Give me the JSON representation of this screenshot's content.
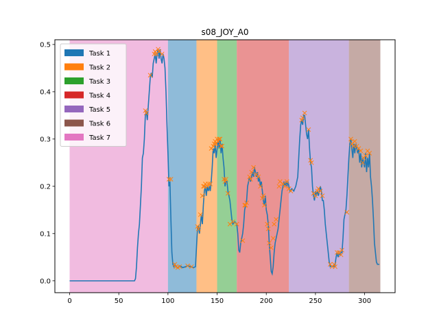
{
  "chart_data": {
    "type": "line",
    "title": "s08_JOY_A0",
    "xlabel": "",
    "ylabel": "",
    "xlim": [
      -15,
      331
    ],
    "ylim": [
      -0.025,
      0.51
    ],
    "xticks": [
      0,
      50,
      100,
      150,
      200,
      250,
      300
    ],
    "yticks": [
      0.0,
      0.1,
      0.2,
      0.3,
      0.4,
      0.5
    ],
    "xtick_labels": [
      "0",
      "50",
      "100",
      "150",
      "200",
      "250",
      "300"
    ],
    "ytick_labels": [
      "0.0",
      "0.1",
      "0.2",
      "0.3",
      "0.4",
      "0.5"
    ],
    "grid": false,
    "legend_position": "upper-left",
    "legend": [
      {
        "label": "Task 1",
        "color": "#1f77b4"
      },
      {
        "label": "Task 2",
        "color": "#ff7f0e"
      },
      {
        "label": "Task 3",
        "color": "#2ca02c"
      },
      {
        "label": "Task 4",
        "color": "#d62728"
      },
      {
        "label": "Task 5",
        "color": "#9467bd"
      },
      {
        "label": "Task 6",
        "color": "#8c564b"
      },
      {
        "label": "Task 7",
        "color": "#e377c2"
      }
    ],
    "spans": [
      {
        "task": "Task 7",
        "x0": 0,
        "x1": 100,
        "color": "#e377c2"
      },
      {
        "task": "Task 1",
        "x0": 100,
        "x1": 129,
        "color": "#1f77b4"
      },
      {
        "task": "Task 2",
        "x0": 129,
        "x1": 150,
        "color": "#ff7f0e"
      },
      {
        "task": "Task 3",
        "x0": 150,
        "x1": 170,
        "color": "#2ca02c"
      },
      {
        "task": "Task 4",
        "x0": 170,
        "x1": 223,
        "color": "#d62728"
      },
      {
        "task": "Task 5",
        "x0": 223,
        "x1": 284,
        "color": "#9467bd"
      },
      {
        "task": "Task 6",
        "x0": 284,
        "x1": 316,
        "color": "#8c564b"
      }
    ],
    "line_color": "#1f77b4",
    "marker_color": "#ff7f0e",
    "series_points": [
      [
        0,
        0
      ],
      [
        66,
        0
      ],
      [
        67,
        0.005
      ],
      [
        68,
        0.03
      ],
      [
        69,
        0.07
      ],
      [
        70,
        0.1
      ],
      [
        71,
        0.12
      ],
      [
        72,
        0.16
      ],
      [
        73,
        0.2
      ],
      [
        74,
        0.26
      ],
      [
        75,
        0.27
      ],
      [
        76,
        0.3
      ],
      [
        77,
        0.35
      ],
      [
        78,
        0.36
      ],
      [
        79,
        0.34
      ],
      [
        80,
        0.37
      ],
      [
        81,
        0.4
      ],
      [
        82,
        0.43
      ],
      [
        83,
        0.44
      ],
      [
        84,
        0.43
      ],
      [
        85,
        0.46
      ],
      [
        86,
        0.47
      ],
      [
        87,
        0.48
      ],
      [
        88,
        0.46
      ],
      [
        89,
        0.48
      ],
      [
        90,
        0.49
      ],
      [
        91,
        0.47
      ],
      [
        92,
        0.49
      ],
      [
        93,
        0.47
      ],
      [
        94,
        0.46
      ],
      [
        95,
        0.48
      ],
      [
        96,
        0.47
      ],
      [
        97,
        0.45
      ],
      [
        98,
        0.4
      ],
      [
        99,
        0.33
      ],
      [
        100,
        0.27
      ],
      [
        101,
        0.2
      ],
      [
        102,
        0.21
      ],
      [
        103,
        0.13
      ],
      [
        104,
        0.06
      ],
      [
        105,
        0.035
      ],
      [
        106,
        0.03
      ],
      [
        107,
        0.035
      ],
      [
        108,
        0.03
      ],
      [
        110,
        0.028
      ],
      [
        112,
        0.032
      ],
      [
        115,
        0.028
      ],
      [
        118,
        0.03
      ],
      [
        120,
        0.032
      ],
      [
        123,
        0.03
      ],
      [
        126,
        0.028
      ],
      [
        128,
        0.03
      ],
      [
        129,
        0.07
      ],
      [
        130,
        0.11
      ],
      [
        131,
        0.115
      ],
      [
        132,
        0.1
      ],
      [
        133,
        0.12
      ],
      [
        134,
        0.14
      ],
      [
        135,
        0.12
      ],
      [
        136,
        0.16
      ],
      [
        137,
        0.19
      ],
      [
        138,
        0.2
      ],
      [
        139,
        0.18
      ],
      [
        140,
        0.2
      ],
      [
        141,
        0.19
      ],
      [
        142,
        0.2
      ],
      [
        143,
        0.19
      ],
      [
        144,
        0.21
      ],
      [
        145,
        0.24
      ],
      [
        146,
        0.28
      ],
      [
        147,
        0.27
      ],
      [
        148,
        0.29
      ],
      [
        149,
        0.26
      ],
      [
        150,
        0.28
      ],
      [
        151,
        0.3
      ],
      [
        152,
        0.28
      ],
      [
        153,
        0.3
      ],
      [
        154,
        0.27
      ],
      [
        155,
        0.29
      ],
      [
        156,
        0.26
      ],
      [
        157,
        0.24
      ],
      [
        158,
        0.2
      ],
      [
        159,
        0.21
      ],
      [
        160,
        0.21
      ],
      [
        161,
        0.19
      ],
      [
        162,
        0.18
      ],
      [
        163,
        0.17
      ],
      [
        164,
        0.15
      ],
      [
        165,
        0.13
      ],
      [
        166,
        0.12
      ],
      [
        168,
        0.125
      ],
      [
        170,
        0.12
      ],
      [
        171,
        0.1
      ],
      [
        172,
        0.065
      ],
      [
        173,
        0.06
      ],
      [
        174,
        0.08
      ],
      [
        175,
        0.09
      ],
      [
        176,
        0.1
      ],
      [
        177,
        0.12
      ],
      [
        178,
        0.15
      ],
      [
        179,
        0.16
      ],
      [
        180,
        0.17
      ],
      [
        181,
        0.2
      ],
      [
        182,
        0.21
      ],
      [
        183,
        0.22
      ],
      [
        184,
        0.21
      ],
      [
        185,
        0.22
      ],
      [
        186,
        0.23
      ],
      [
        187,
        0.22
      ],
      [
        188,
        0.24
      ],
      [
        189,
        0.23
      ],
      [
        190,
        0.22
      ],
      [
        191,
        0.23
      ],
      [
        192,
        0.21
      ],
      [
        193,
        0.22
      ],
      [
        194,
        0.2
      ],
      [
        195,
        0.21
      ],
      [
        196,
        0.19
      ],
      [
        197,
        0.17
      ],
      [
        198,
        0.16
      ],
      [
        199,
        0.18
      ],
      [
        200,
        0.15
      ],
      [
        201,
        0.14
      ],
      [
        202,
        0.12
      ],
      [
        203,
        0.08
      ],
      [
        204,
        0.05
      ],
      [
        205,
        0.02
      ],
      [
        206,
        0.015
      ],
      [
        207,
        0.03
      ],
      [
        208,
        0.06
      ],
      [
        209,
        0.08
      ],
      [
        210,
        0.09
      ],
      [
        211,
        0.1
      ],
      [
        212,
        0.11
      ],
      [
        213,
        0.13
      ],
      [
        214,
        0.15
      ],
      [
        215,
        0.17
      ],
      [
        216,
        0.19
      ],
      [
        217,
        0.2
      ],
      [
        218,
        0.21
      ],
      [
        219,
        0.2
      ],
      [
        220,
        0.21
      ],
      [
        221,
        0.2
      ],
      [
        222,
        0.21
      ],
      [
        223,
        0.2
      ],
      [
        224,
        0.19
      ],
      [
        226,
        0.195
      ],
      [
        228,
        0.19
      ],
      [
        230,
        0.2
      ],
      [
        232,
        0.22
      ],
      [
        233,
        0.26
      ],
      [
        234,
        0.3
      ],
      [
        235,
        0.33
      ],
      [
        236,
        0.34
      ],
      [
        237,
        0.33
      ],
      [
        238,
        0.35
      ],
      [
        239,
        0.35
      ],
      [
        240,
        0.33
      ],
      [
        241,
        0.31
      ],
      [
        242,
        0.3
      ],
      [
        243,
        0.32
      ],
      [
        244,
        0.28
      ],
      [
        245,
        0.25
      ],
      [
        246,
        0.24
      ],
      [
        247,
        0.2
      ],
      [
        248,
        0.18
      ],
      [
        249,
        0.17
      ],
      [
        250,
        0.19
      ],
      [
        251,
        0.18
      ],
      [
        252,
        0.19
      ],
      [
        253,
        0.18
      ],
      [
        254,
        0.19
      ],
      [
        255,
        0.2
      ],
      [
        256,
        0.19
      ],
      [
        257,
        0.17
      ],
      [
        258,
        0.17
      ],
      [
        259,
        0.15
      ],
      [
        260,
        0.12
      ],
      [
        261,
        0.1
      ],
      [
        262,
        0.08
      ],
      [
        263,
        0.06
      ],
      [
        264,
        0.04
      ],
      [
        265,
        0.03
      ],
      [
        266,
        0.032
      ],
      [
        267,
        0.03
      ],
      [
        268,
        0.032
      ],
      [
        269,
        0.03
      ],
      [
        270,
        0.035
      ],
      [
        271,
        0.05
      ],
      [
        272,
        0.06
      ],
      [
        273,
        0.05
      ],
      [
        274,
        0.06
      ],
      [
        275,
        0.055
      ],
      [
        276,
        0.06
      ],
      [
        277,
        0.06
      ],
      [
        278,
        0.09
      ],
      [
        279,
        0.13
      ],
      [
        280,
        0.14
      ],
      [
        281,
        0.15
      ],
      [
        282,
        0.18
      ],
      [
        283,
        0.22
      ],
      [
        284,
        0.26
      ],
      [
        285,
        0.29
      ],
      [
        286,
        0.3
      ],
      [
        287,
        0.28
      ],
      [
        288,
        0.26
      ],
      [
        289,
        0.29
      ],
      [
        290,
        0.27
      ],
      [
        291,
        0.29
      ],
      [
        292,
        0.28
      ],
      [
        293,
        0.27
      ],
      [
        294,
        0.28
      ],
      [
        295,
        0.25
      ],
      [
        296,
        0.27
      ],
      [
        297,
        0.24
      ],
      [
        298,
        0.26
      ],
      [
        299,
        0.25
      ],
      [
        300,
        0.24
      ],
      [
        301,
        0.27
      ],
      [
        302,
        0.23
      ],
      [
        303,
        0.26
      ],
      [
        304,
        0.24
      ],
      [
        305,
        0.27
      ],
      [
        306,
        0.22
      ],
      [
        307,
        0.2
      ],
      [
        308,
        0.17
      ],
      [
        309,
        0.13
      ],
      [
        310,
        0.08
      ],
      [
        311,
        0.06
      ],
      [
        312,
        0.04
      ],
      [
        313,
        0.035
      ],
      [
        315,
        0.035
      ]
    ],
    "marker_points": [
      [
        77,
        0.36
      ],
      [
        78,
        0.355
      ],
      [
        82,
        0.435
      ],
      [
        86,
        0.48
      ],
      [
        87,
        0.485
      ],
      [
        88,
        0.48
      ],
      [
        90,
        0.49
      ],
      [
        91,
        0.485
      ],
      [
        94,
        0.48
      ],
      [
        101,
        0.215
      ],
      [
        103,
        0.215
      ],
      [
        107,
        0.035
      ],
      [
        108,
        0.03
      ],
      [
        110,
        0.028
      ],
      [
        112,
        0.03
      ],
      [
        120,
        0.032
      ],
      [
        124,
        0.03
      ],
      [
        130,
        0.115
      ],
      [
        131,
        0.11
      ],
      [
        133,
        0.14
      ],
      [
        135,
        0.18
      ],
      [
        136,
        0.2
      ],
      [
        137,
        0.2
      ],
      [
        138,
        0.205
      ],
      [
        140,
        0.2
      ],
      [
        141,
        0.205
      ],
      [
        143,
        0.205
      ],
      [
        144,
        0.28
      ],
      [
        146,
        0.285
      ],
      [
        147,
        0.29
      ],
      [
        148,
        0.295
      ],
      [
        149,
        0.29
      ],
      [
        150,
        0.3
      ],
      [
        151,
        0.295
      ],
      [
        152,
        0.3
      ],
      [
        153,
        0.3
      ],
      [
        154,
        0.285
      ],
      [
        155,
        0.285
      ],
      [
        157,
        0.215
      ],
      [
        158,
        0.21
      ],
      [
        159,
        0.215
      ],
      [
        161,
        0.185
      ],
      [
        163,
        0.12
      ],
      [
        166,
        0.125
      ],
      [
        170,
        0.12
      ],
      [
        176,
        0.085
      ],
      [
        178,
        0.16
      ],
      [
        179,
        0.16
      ],
      [
        180,
        0.165
      ],
      [
        183,
        0.22
      ],
      [
        184,
        0.215
      ],
      [
        185,
        0.23
      ],
      [
        187,
        0.24
      ],
      [
        190,
        0.225
      ],
      [
        192,
        0.22
      ],
      [
        194,
        0.2
      ],
      [
        196,
        0.175
      ],
      [
        197,
        0.18
      ],
      [
        198,
        0.16
      ],
      [
        201,
        0.12
      ],
      [
        202,
        0.11
      ],
      [
        203,
        0.08
      ],
      [
        205,
        0.07
      ],
      [
        207,
        0.09
      ],
      [
        208,
        0.12
      ],
      [
        210,
        0.13
      ],
      [
        213,
        0.2
      ],
      [
        214,
        0.21
      ],
      [
        217,
        0.205
      ],
      [
        219,
        0.2
      ],
      [
        221,
        0.21
      ],
      [
        223,
        0.195
      ],
      [
        225,
        0.19
      ],
      [
        236,
        0.34
      ],
      [
        237,
        0.345
      ],
      [
        239,
        0.355
      ],
      [
        243,
        0.32
      ],
      [
        245,
        0.255
      ],
      [
        246,
        0.25
      ],
      [
        248,
        0.185
      ],
      [
        250,
        0.18
      ],
      [
        252,
        0.19
      ],
      [
        253,
        0.195
      ],
      [
        255,
        0.19
      ],
      [
        257,
        0.18
      ],
      [
        265,
        0.035
      ],
      [
        267,
        0.03
      ],
      [
        269,
        0.035
      ],
      [
        270,
        0.03
      ],
      [
        272,
        0.06
      ],
      [
        274,
        0.06
      ],
      [
        276,
        0.055
      ],
      [
        277,
        0.065
      ],
      [
        282,
        0.145
      ],
      [
        286,
        0.3
      ],
      [
        287,
        0.29
      ],
      [
        289,
        0.285
      ],
      [
        290,
        0.295
      ],
      [
        292,
        0.285
      ],
      [
        294,
        0.28
      ],
      [
        296,
        0.275
      ],
      [
        298,
        0.25
      ],
      [
        299,
        0.26
      ],
      [
        301,
        0.265
      ],
      [
        303,
        0.275
      ],
      [
        305,
        0.27
      ]
    ]
  }
}
